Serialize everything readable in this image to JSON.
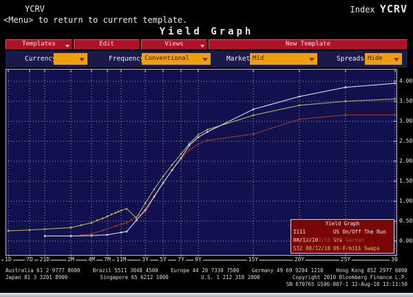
{
  "header": {
    "app_code": "YCRV",
    "index_label": "Index",
    "index_value": "YCRV",
    "menu_hint": "<Menu> to return to current template.",
    "page_title": "Yield Graph"
  },
  "toolbar": {
    "buttons": [
      {
        "label": "Templates",
        "has_dropdown": true
      },
      {
        "label": "Edit",
        "has_dropdown": false
      },
      {
        "label": "Views",
        "has_dropdown": true
      }
    ],
    "new_template_label": "New Template"
  },
  "controls": [
    {
      "id": "currency",
      "label": "Currency",
      "value": ""
    },
    {
      "id": "frequency",
      "label": "Frequency",
      "value": "Conventional"
    },
    {
      "id": "market",
      "label": "Market",
      "value": "Mid"
    },
    {
      "id": "spreads",
      "label": "Spreads",
      "value": "Hide"
    }
  ],
  "chart_data": {
    "type": "line",
    "title": "Yield Graph",
    "ylim": [
      0,
      4
    ],
    "grid": "dashed",
    "legend_position": "bottom-right",
    "y_tick_labels": [
      "0.00",
      "0.50",
      "1.00",
      "1.50",
      "2.00",
      "2.50",
      "3.00",
      "3.50",
      "4.00"
    ],
    "x_tick_labels": [
      "1D",
      "7D",
      "21D",
      "2M",
      "4M",
      "7M",
      "11M",
      "3Y",
      "5Y",
      "7Y",
      "9Y",
      "15Y",
      "20Y",
      "25Y",
      "30"
    ],
    "series": [
      {
        "id": "I111",
        "date": "08/12/10",
        "name": "US On/Off The Run Sov",
        "color": "#d9d9ef",
        "legend_color": "#ededed",
        "points": [
          [
            "21D",
            0.13
          ],
          [
            "2M",
            0.13
          ],
          [
            "4M",
            0.14
          ],
          [
            "7M",
            0.16
          ],
          [
            "11M",
            0.22
          ],
          [
            "1Y",
            0.24
          ],
          [
            "2Y",
            0.52
          ],
          [
            "3Y",
            0.78
          ],
          [
            "4Y",
            1.12
          ],
          [
            "5Y",
            1.46
          ],
          [
            "6Y",
            1.78
          ],
          [
            "7Y",
            2.08
          ],
          [
            "8Y",
            2.4
          ],
          [
            "9Y",
            2.6
          ],
          [
            "10Y",
            2.73
          ],
          [
            "15Y",
            3.3
          ],
          [
            "20Y",
            3.62
          ],
          [
            "25Y",
            3.85
          ],
          [
            "30Y",
            3.95
          ]
        ]
      },
      {
        "id": "I16",
        "date": "08/12/10",
        "name": "EUR German Sovereign",
        "color": "#9e3a1c",
        "legend_color": "#b84a12",
        "points": [
          [
            "3M",
            0.15
          ],
          [
            "4M",
            0.18
          ],
          [
            "6M",
            0.27
          ],
          [
            "9M",
            0.38
          ],
          [
            "1Y",
            0.46
          ],
          [
            "18M",
            0.54
          ],
          [
            "2Y",
            0.62
          ],
          [
            "3Y",
            0.72
          ],
          [
            "4Y",
            1.1
          ],
          [
            "5Y",
            1.46
          ],
          [
            "6Y",
            1.78
          ],
          [
            "7Y",
            2.06
          ],
          [
            "8Y",
            2.28
          ],
          [
            "9Y",
            2.43
          ],
          [
            "10Y",
            2.52
          ],
          [
            "15Y",
            2.68
          ],
          [
            "20Y",
            3.05
          ],
          [
            "25Y",
            3.16
          ],
          [
            "30Y",
            3.16
          ]
        ]
      },
      {
        "id": "S32",
        "date": "08/12/10",
        "name": "US T-bill Swaps",
        "color": "#b9b054",
        "legend_color": "#d9cd2e",
        "points": [
          [
            "1D",
            0.26
          ],
          [
            "7D",
            0.28
          ],
          [
            "21D",
            0.3
          ],
          [
            "2M",
            0.34
          ],
          [
            "3M",
            0.4
          ],
          [
            "4M",
            0.46
          ],
          [
            "5M",
            0.52
          ],
          [
            "6M",
            0.57
          ],
          [
            "7M",
            0.62
          ],
          [
            "8M",
            0.67
          ],
          [
            "9M",
            0.71
          ],
          [
            "10M",
            0.74
          ],
          [
            "11M",
            0.77
          ],
          [
            "1Y",
            0.81
          ],
          [
            "2Y",
            0.58
          ],
          [
            "3Y",
            0.95
          ],
          [
            "4Y",
            1.3
          ],
          [
            "5Y",
            1.62
          ],
          [
            "6Y",
            1.91
          ],
          [
            "7Y",
            2.18
          ],
          [
            "8Y",
            2.44
          ],
          [
            "9Y",
            2.66
          ],
          [
            "10Y",
            2.79
          ],
          [
            "15Y",
            3.15
          ],
          [
            "20Y",
            3.4
          ],
          [
            "25Y",
            3.5
          ],
          [
            "30Y",
            3.56
          ]
        ]
      }
    ]
  },
  "footer": {
    "line1": [
      "Australia 61 2 9777 8600",
      "Brazil 5511 3048 4500",
      "Europe 44 20 7330 7500",
      "Germany 49 69 9204 1210",
      "Hong Kong 852 2977 6000"
    ],
    "line2": [
      "Japan 81 3 3201 8900",
      "Singapore 65 6212 1000",
      "U.S. 1 212 318 2000",
      "Copyright 2010 Bloomberg Finance L.P."
    ],
    "line3": "SN 670765 G506-807-1 12-Aug-10 13:11:50"
  }
}
